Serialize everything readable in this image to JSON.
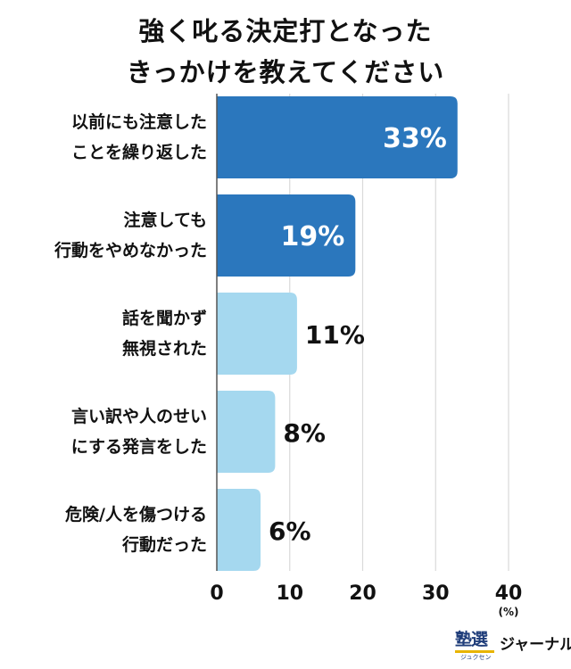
{
  "title": {
    "line1": "強く叱る決定打となった",
    "line2": "きっかけを教えてください"
  },
  "colors": {
    "dark_bar": "#2b77bd",
    "light_bar": "#a5d8ef",
    "grid": "#d9d9d9",
    "axis": "#555555"
  },
  "chart_data": {
    "type": "bar",
    "orientation": "horizontal",
    "categories": [
      [
        "以前にも注意した",
        "ことを繰り返した"
      ],
      [
        "注意しても",
        "行動をやめなかった"
      ],
      [
        "話を聞かず",
        "無視された"
      ],
      [
        "言い訳や人のせい",
        "にする発言をした"
      ],
      [
        "危険/人を傷つける",
        "行動だった"
      ]
    ],
    "values": [
      33,
      19,
      11,
      8,
      6
    ],
    "value_labels": [
      "33%",
      "19%",
      "11%",
      "8%",
      "6%"
    ],
    "highlight": [
      true,
      true,
      false,
      false,
      false
    ],
    "xlim": [
      0,
      40
    ],
    "xticks": [
      0,
      10,
      20,
      30,
      40
    ],
    "tick_labels": [
      "0",
      "10",
      "20",
      "30",
      "40"
    ],
    "unit": "(%)",
    "grid": true
  },
  "logo": {
    "kanji": "塾選",
    "reading": "ジュクセン",
    "text": "ジャーナル"
  }
}
